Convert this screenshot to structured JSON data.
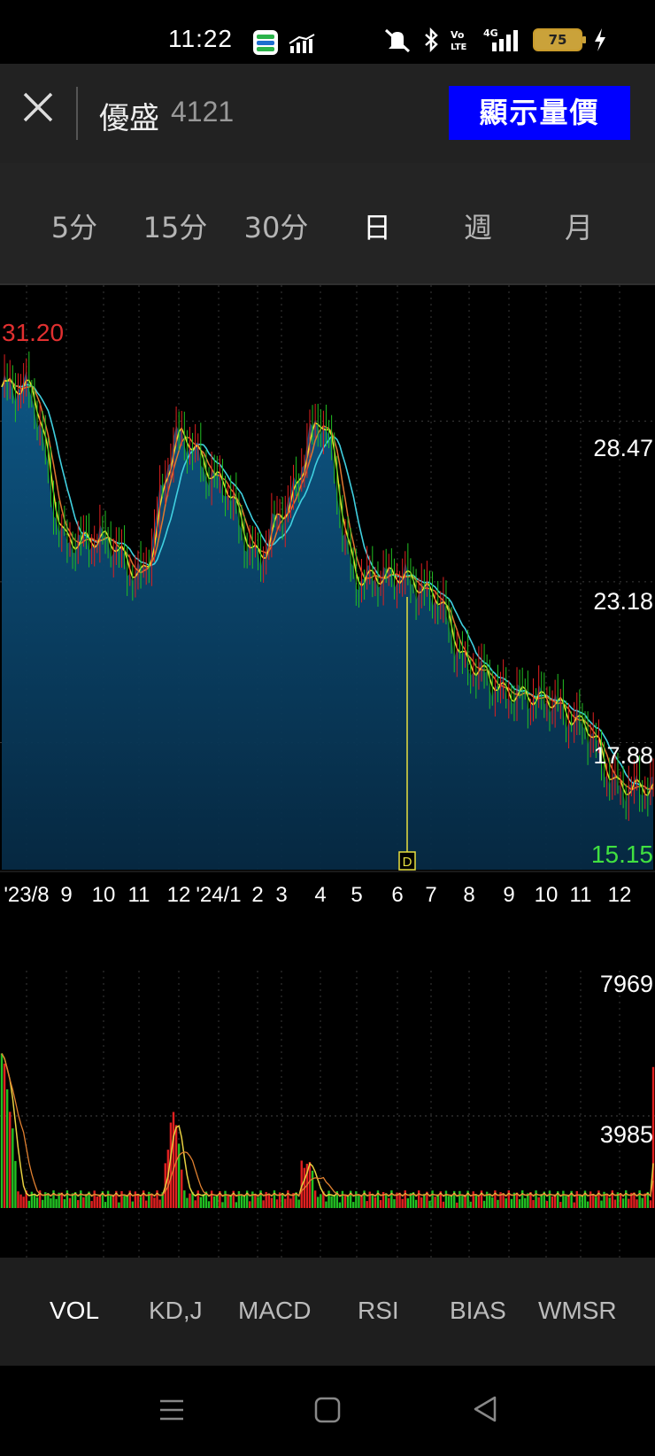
{
  "status_bar": {
    "time": "11:22",
    "battery": "75",
    "network": "4G",
    "icons": [
      "linepay-app-icon",
      "stock-app-icon",
      "silent-icon",
      "bluetooth-icon",
      "volte-icon",
      "signal-icon",
      "battery-icon",
      "charging-icon"
    ]
  },
  "header": {
    "stock_name": "優盛",
    "stock_code": "4121",
    "show_volume_button": "顯示量價"
  },
  "period_tabs": [
    {
      "label": "5分",
      "active": false
    },
    {
      "label": "15分",
      "active": false
    },
    {
      "label": "30分",
      "active": false
    },
    {
      "label": "日",
      "active": true
    },
    {
      "label": "週",
      "active": false
    },
    {
      "label": "月",
      "active": false
    }
  ],
  "price_chart": {
    "high_label": "31.20",
    "low_label": "15.15",
    "y_ticks": [
      "28.47",
      "23.18",
      "17.88"
    ],
    "x_ticks": [
      "'23/8",
      "9",
      "10",
      "11",
      "12",
      "'24/1",
      "2",
      "3",
      "4",
      "5",
      "6",
      "7",
      "8",
      "9",
      "10",
      "11",
      "12"
    ],
    "marker_label": "D"
  },
  "volume_chart": {
    "y_ticks": [
      "7969",
      "3985"
    ]
  },
  "indicator_tabs": [
    {
      "label": "VOL",
      "active": true
    },
    {
      "label": "KD,J",
      "active": false
    },
    {
      "label": "MACD",
      "active": false
    },
    {
      "label": "RSI",
      "active": false
    },
    {
      "label": "BIAS",
      "active": false
    },
    {
      "label": "WMSR",
      "active": false
    }
  ],
  "colors": {
    "background": "#000000",
    "header_bg": "#222222",
    "button_blue": "#0000ff",
    "up_red": "#e02020",
    "down_green": "#22c022",
    "high_label": "#e03030",
    "low_label": "#40e040",
    "area_fill": "#0b4a78",
    "ma_yellow": "#e8e030",
    "ma_cyan": "#40d0e0",
    "ma_orange": "#e07830",
    "marker_line": "#e8e040"
  },
  "chart_data": {
    "type": "line",
    "x_range": [
      "'23/8",
      "12"
    ],
    "ylim": [
      15.15,
      31.2
    ],
    "x": [
      "'23/8",
      "9",
      "10",
      "11",
      "12",
      "'24/1",
      "2",
      "3",
      "4",
      "5",
      "6",
      "7",
      "8",
      "9",
      "10",
      "11",
      "12"
    ],
    "series": [
      {
        "values": [
          29.6,
          24.5,
          24.6,
          23.4,
          28.0,
          26.5,
          24.0,
          25.5,
          28.5,
          23.3,
          23.4,
          22.8,
          20.4,
          19.5,
          19.3,
          18.5,
          16.4
        ]
      }
    ],
    "volume_ylim": [
      0,
      7969
    ],
    "grid": true,
    "legend": "none"
  }
}
